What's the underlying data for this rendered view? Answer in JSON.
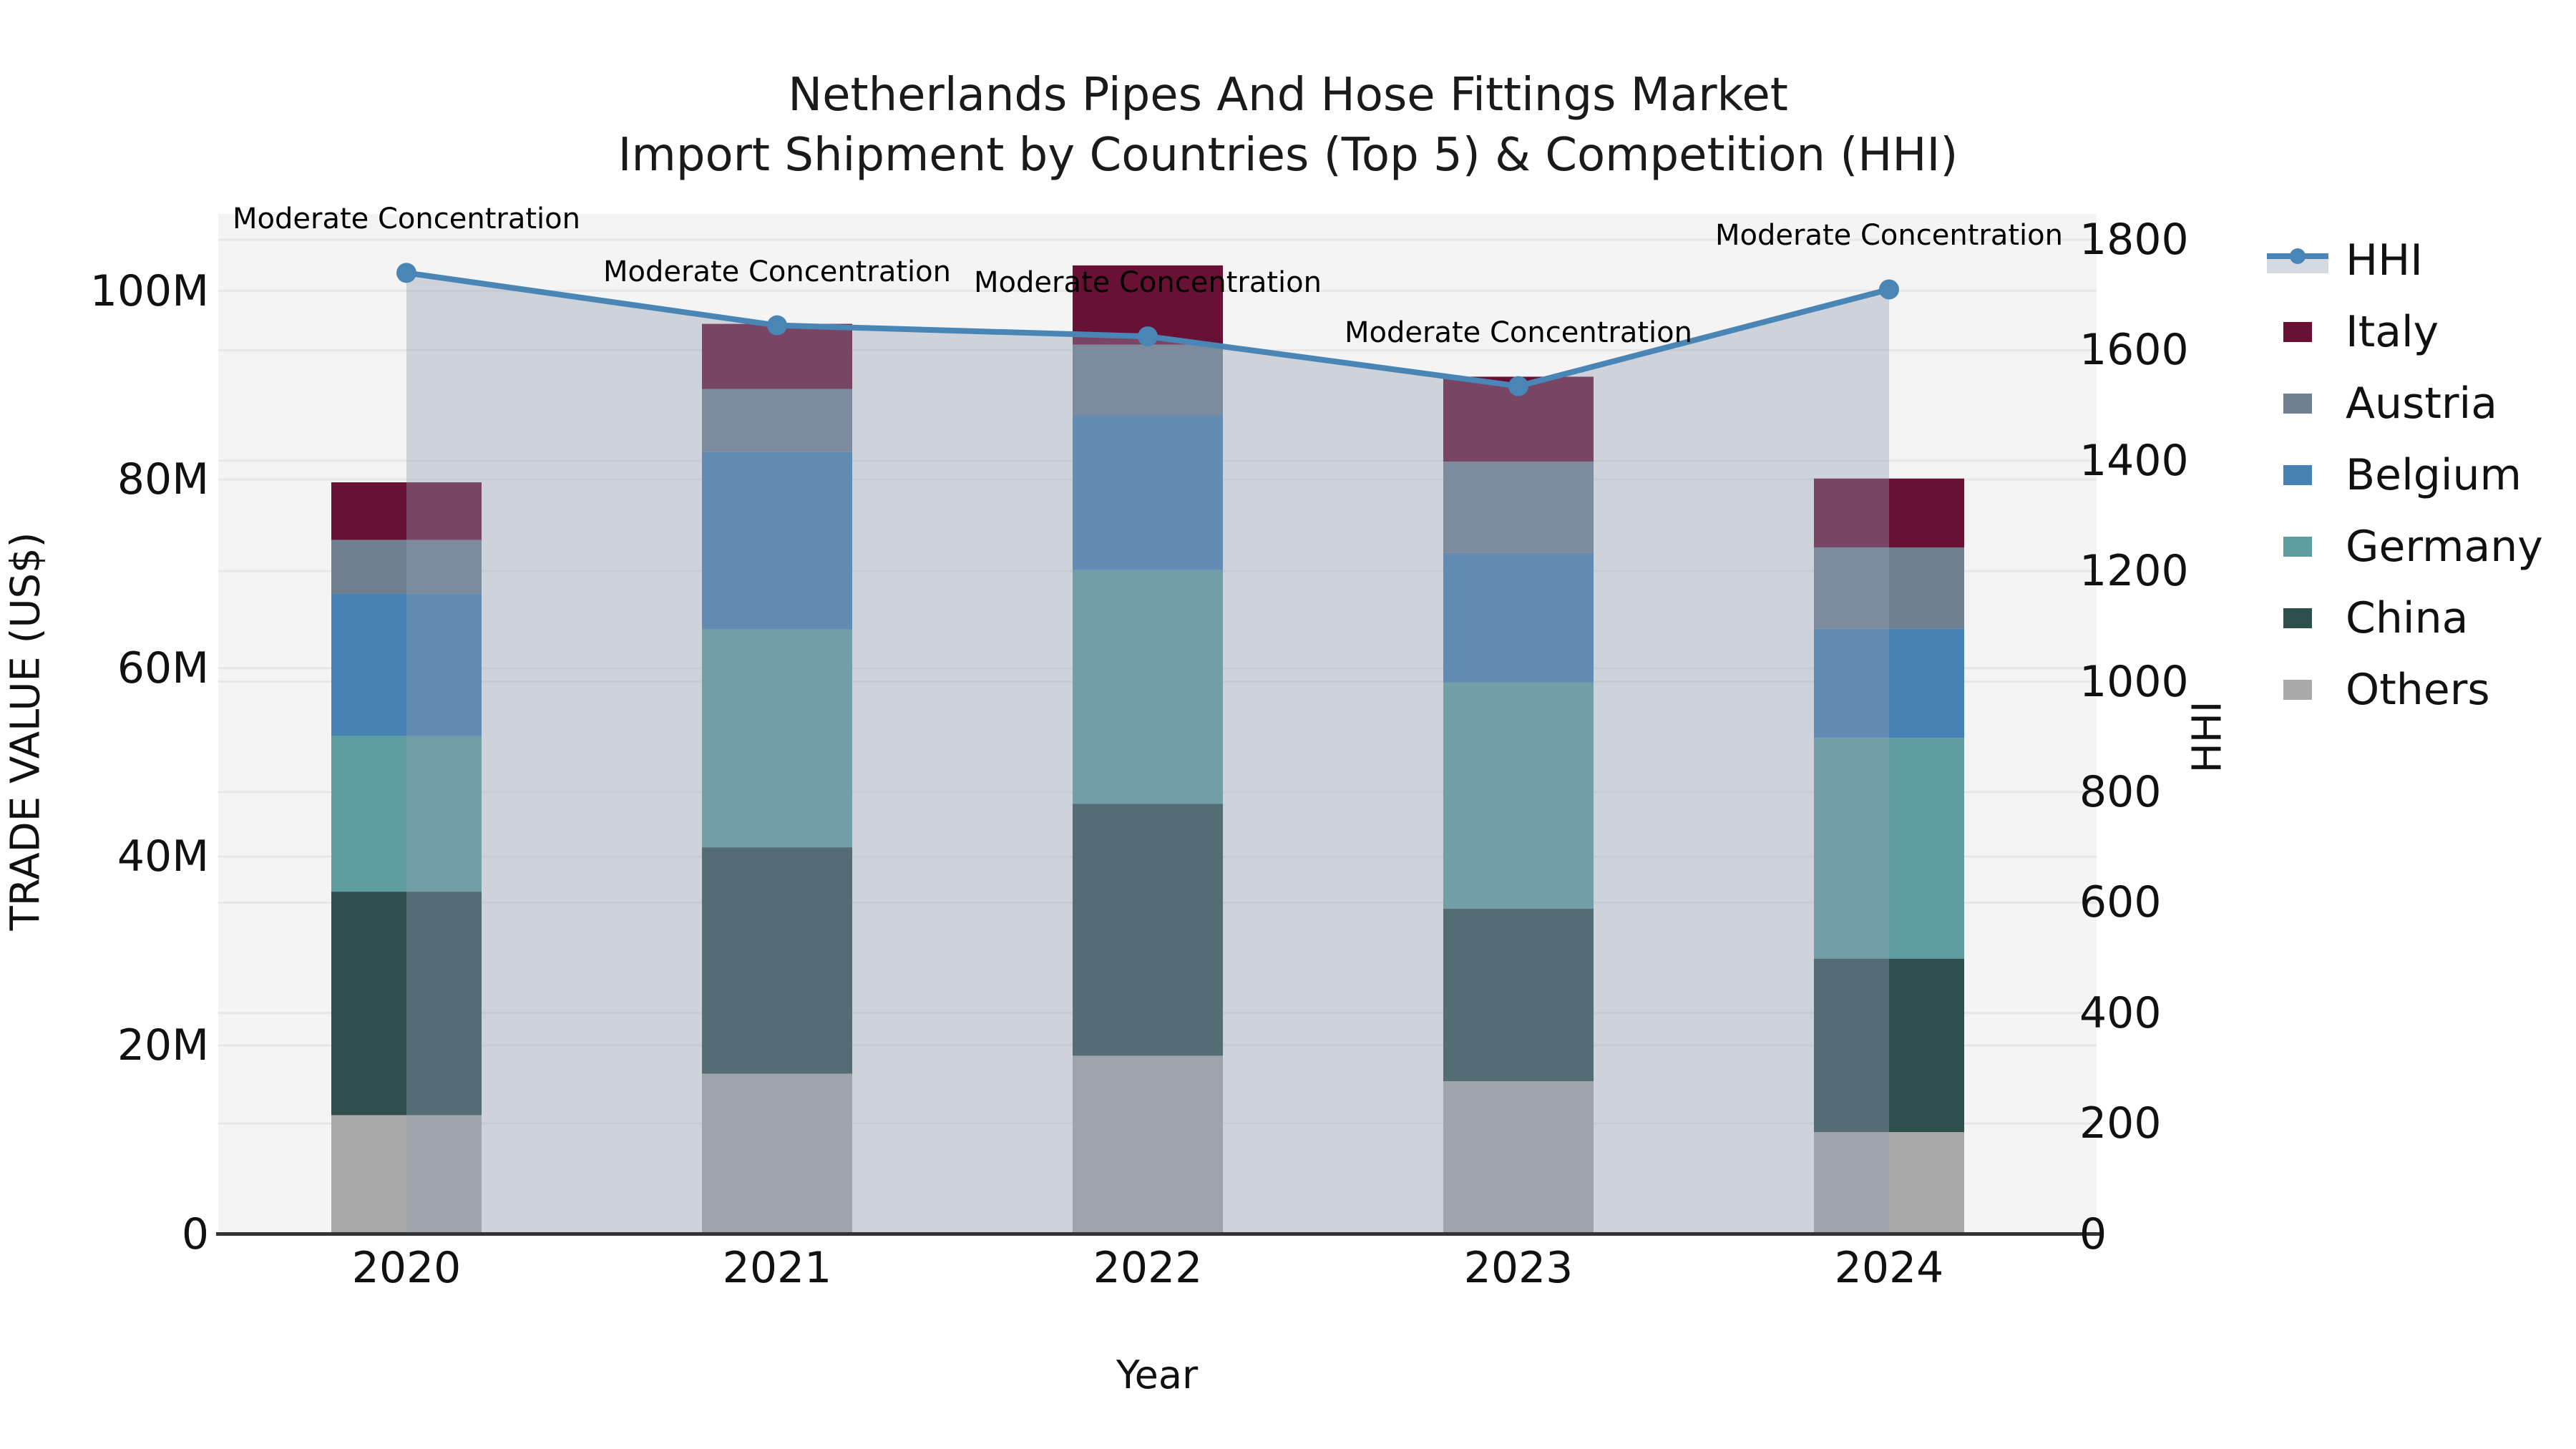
{
  "title": {
    "line1": "Netherlands Pipes And Hose Fittings Market",
    "line2": "Import Shipment by Countries (Top 5) & Competition (HHI)"
  },
  "legend": {
    "items": [
      {
        "label": "HHI",
        "type": "line",
        "color": "#4A86B5"
      },
      {
        "label": "Italy",
        "type": "box",
        "color": "#691135"
      },
      {
        "label": "Austria",
        "type": "box",
        "color": "#708090"
      },
      {
        "label": "Belgium",
        "type": "box",
        "color": "#4682B4"
      },
      {
        "label": "Germany",
        "type": "box",
        "color": "#5F9EA0"
      },
      {
        "label": "China",
        "type": "box",
        "color": "#2F4F4F"
      },
      {
        "label": "Others",
        "type": "box",
        "color": "#A9A9A9"
      }
    ]
  },
  "chart_data": {
    "type": "bar",
    "stacked": true,
    "title": "Netherlands Pipes And Hose Fittings Market — Import Shipment by Countries (Top 5) & Competition (HHI)",
    "xlabel": "Year",
    "categories": [
      "2020",
      "2021",
      "2022",
      "2023",
      "2024"
    ],
    "left_axis": {
      "label": "TRADE VALUE (US$)",
      "unit": "M US$",
      "ticks": [
        "0",
        "20M",
        "40M",
        "60M",
        "80M",
        "100M"
      ],
      "tick_values": [
        0,
        20,
        40,
        60,
        80,
        100
      ],
      "range": [
        0,
        108
      ]
    },
    "right_axis": {
      "label": "HHI",
      "ticks": [
        "0",
        "200",
        "400",
        "600",
        "800",
        "1000",
        "1200",
        "1400",
        "1600",
        "1800"
      ],
      "tick_values": [
        0,
        200,
        400,
        600,
        800,
        1000,
        1200,
        1400,
        1600,
        1800
      ],
      "range": [
        0,
        1847
      ]
    },
    "series": [
      {
        "name": "Others",
        "color": "#A9A9A9",
        "values": [
          12.6,
          17.0,
          18.9,
          16.2,
          10.8
        ]
      },
      {
        "name": "China",
        "color": "#2F4F4F",
        "values": [
          23.7,
          24.0,
          26.7,
          18.3,
          18.4
        ]
      },
      {
        "name": "Germany",
        "color": "#5F9EA0",
        "values": [
          16.5,
          23.1,
          24.8,
          24.0,
          23.4
        ]
      },
      {
        "name": "Belgium",
        "color": "#4682B4",
        "values": [
          15.1,
          18.8,
          16.4,
          13.7,
          11.6
        ]
      },
      {
        "name": "Austria",
        "color": "#708090",
        "values": [
          5.7,
          6.7,
          7.5,
          9.7,
          8.6
        ]
      },
      {
        "name": "Italy",
        "color": "#691135",
        "values": [
          6.1,
          6.9,
          8.4,
          9.0,
          7.3
        ]
      }
    ],
    "stack_order": "bottom-to-top",
    "line_series": {
      "name": "HHI",
      "axis": "right",
      "color": "#4A86B5",
      "marker": "circle",
      "area_fill": "rgba(144,158,180,0.38)",
      "values": [
        1740,
        1645,
        1625,
        1535,
        1710
      ],
      "annotations": [
        "Moderate Concentration",
        "Moderate Concentration",
        "Moderate Concentration",
        "Moderate Concentration",
        "Moderate Concentration"
      ]
    },
    "grid": true,
    "plot_background": "#f4f4f4",
    "grid_color": "#e7e7e7",
    "legend_position": "right"
  }
}
